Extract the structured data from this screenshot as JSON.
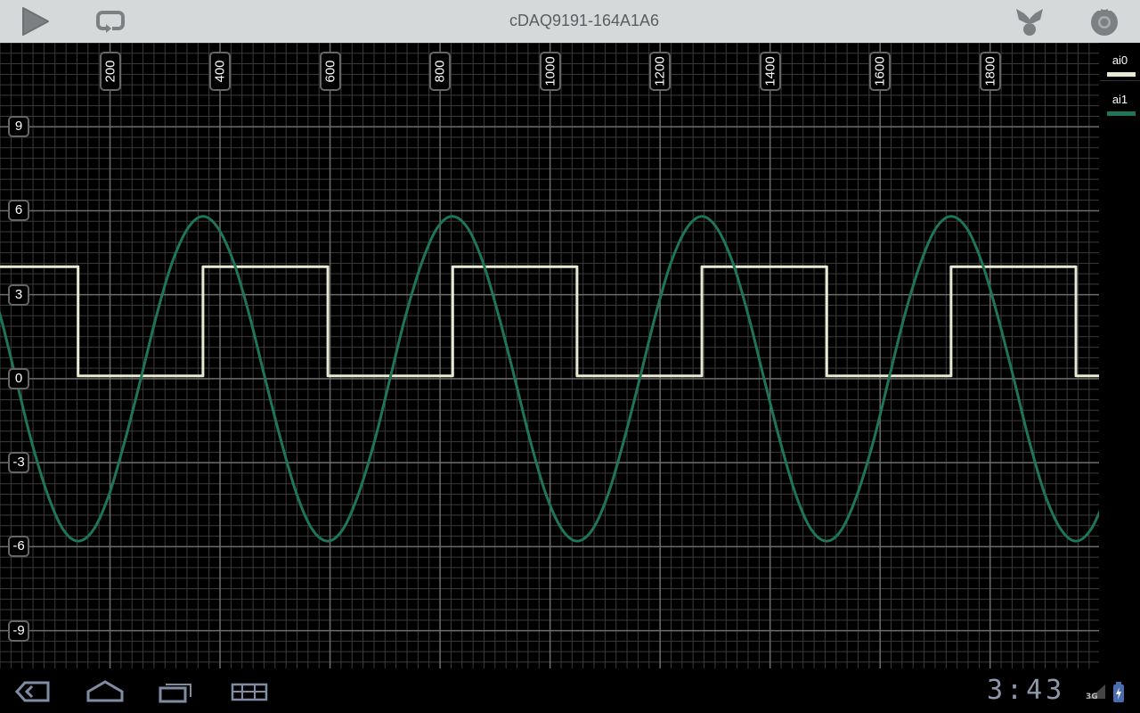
{
  "header": {
    "title": "cDAQ9191-164A1A6",
    "icons": [
      "play-icon",
      "loop-icon",
      "merge-icon",
      "settings-icon"
    ]
  },
  "legend": [
    {
      "label": "ai0",
      "color": "#e8ead2"
    },
    {
      "label": "ai1",
      "color": "#1f7558"
    }
  ],
  "navbar": {
    "icons": [
      "back-icon",
      "home-icon",
      "recent-apps-icon",
      "menu-grid-icon"
    ],
    "clock": "3:43",
    "network": "3G"
  },
  "chart_data": {
    "type": "line",
    "title": "",
    "xlabel": "",
    "ylabel": "",
    "xlim": [
      0,
      1998
    ],
    "ylim": [
      -10.35,
      12
    ],
    "grid": true,
    "legend_placement": "right",
    "x_ticks": [
      200,
      400,
      600,
      800,
      1000,
      1200,
      1400,
      1600,
      1800
    ],
    "y_ticks": [
      9,
      6,
      3,
      0,
      -3,
      -6,
      -9
    ],
    "series": [
      {
        "name": "ai0",
        "color": "#e8ead2",
        "x": [
          0,
          142,
          142,
          369,
          369,
          596,
          596,
          823,
          823,
          1049,
          1049,
          1276,
          1276,
          1503,
          1503,
          1729,
          1729,
          1956,
          1956,
          1998
        ],
        "y": [
          4,
          4,
          0.1,
          0.1,
          4,
          4,
          0.1,
          0.1,
          4,
          4,
          0.1,
          0.1,
          4,
          4,
          0.1,
          0.1,
          4,
          4,
          0.1,
          0.1
        ]
      },
      {
        "name": "ai1",
        "color": "#1f7558",
        "x": [
          -28,
          1,
          29,
          57,
          86,
          114,
          142,
          171,
          199,
          227,
          256,
          284,
          312,
          341,
          369,
          397,
          426,
          454,
          482,
          511,
          539,
          567,
          596,
          624,
          652,
          681,
          709,
          737,
          766,
          794,
          822,
          851,
          879,
          907,
          936,
          964,
          992,
          1021,
          1049,
          1078,
          1106,
          1134,
          1163,
          1191,
          1219,
          1248,
          1276,
          1304,
          1333,
          1361,
          1389,
          1418,
          1446,
          1474,
          1503,
          1531,
          1559,
          1588,
          1616,
          1644,
          1673,
          1701,
          1729,
          1758,
          1786,
          1814,
          1843,
          1871,
          1899,
          1928,
          1956,
          1984,
          2013
        ],
        "y": [
          4.1,
          2.22,
          0,
          -2.22,
          -4.1,
          -5.36,
          -5.8,
          -5.36,
          -4.1,
          -2.22,
          0,
          2.22,
          4.1,
          5.36,
          5.8,
          5.36,
          4.1,
          2.22,
          0,
          -2.22,
          -4.1,
          -5.36,
          -5.8,
          -5.36,
          -4.1,
          -2.22,
          0,
          2.22,
          4.1,
          5.36,
          5.8,
          5.36,
          4.1,
          2.22,
          0,
          -2.22,
          -4.1,
          -5.36,
          -5.8,
          -5.36,
          -4.1,
          -2.22,
          0,
          2.22,
          4.1,
          5.36,
          5.8,
          5.36,
          4.1,
          2.22,
          0,
          -2.22,
          -4.1,
          -5.36,
          -5.8,
          -5.36,
          -4.1,
          -2.22,
          0,
          2.22,
          4.1,
          5.36,
          5.8,
          5.36,
          4.1,
          2.22,
          0,
          -2.22,
          -4.1,
          -5.36,
          -5.8,
          -5.36,
          -4.1
        ]
      }
    ]
  }
}
